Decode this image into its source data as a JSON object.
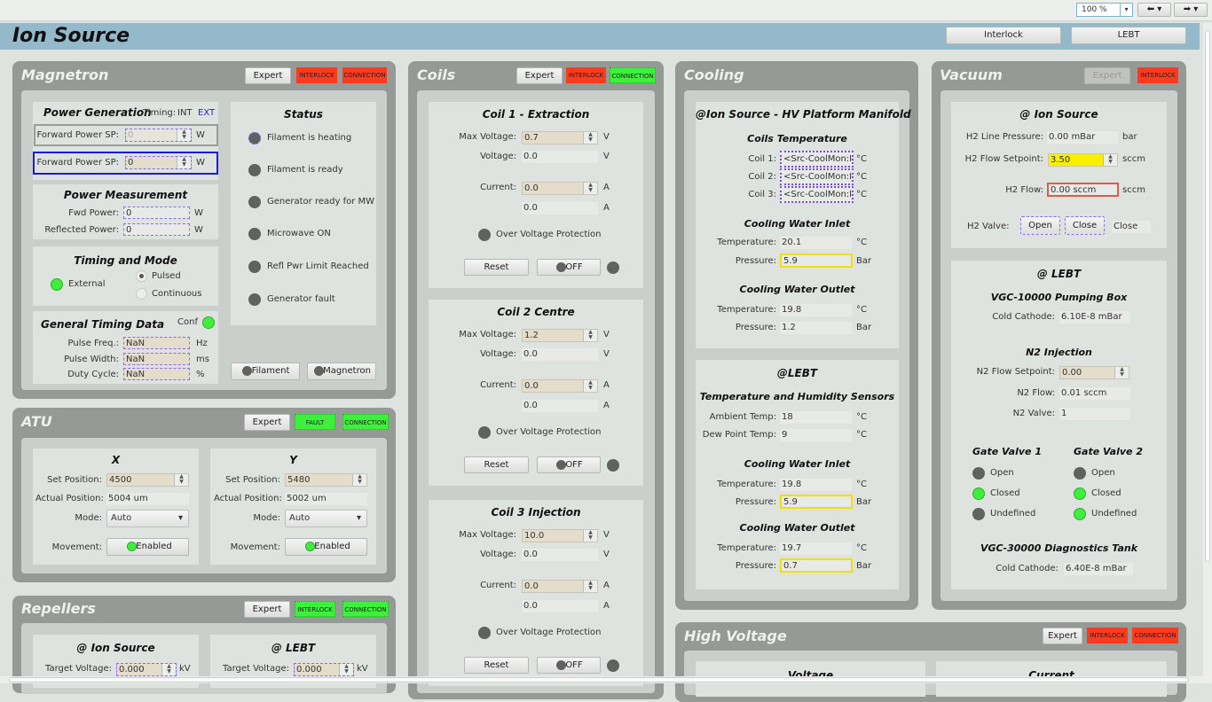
{
  "toolbar": {
    "zoom": "100 %",
    "zoom_arrow": "▾",
    "back_icon": "arrow-left",
    "forward_icon": "arrow-right"
  },
  "header": {
    "title": "Ion Source",
    "interlock_btn": "Interlock",
    "lebt_btn": "LEBT"
  },
  "colors": {
    "alarm": "#ff3a1f",
    "ok": "#3cf03c",
    "header": "#93b9cb",
    "panel": "#969a96"
  },
  "common": {
    "expert": "Expert",
    "interlock": "INTERLOCK",
    "connection": "CONNECTION",
    "fault": "FAULT"
  },
  "magnetron": {
    "title": "Magnetron",
    "interlock_state": "alarm",
    "connection_state": "alarm",
    "power_generation": {
      "title": "Power Generation",
      "timing_label": "Timing:",
      "int": "INT",
      "ext": "EXT",
      "sp_label": "Forward Power SP:",
      "sp1": "0",
      "sp2": "0",
      "unit": "W"
    },
    "power_measurement": {
      "title": "Power Measurement",
      "fwd_label": "Fwd Power:",
      "fwd": "0",
      "refl_label": "Reflected Power:",
      "refl": "0",
      "unit": "W"
    },
    "timing_mode": {
      "title": "Timing and Mode",
      "external": "External",
      "pulsed": "Pulsed",
      "continuous": "Continuous",
      "selected": "Pulsed"
    },
    "general_timing": {
      "title": "General Timing Data",
      "conf": "Conf",
      "pulse_freq_label": "Pulse Freq.:",
      "pulse_freq": "NaN",
      "pulse_freq_unit": "Hz",
      "pulse_width_label": "Pulse Width:",
      "pulse_width": "NaN",
      "pulse_width_unit": "ms",
      "duty_label": "Duty Cycle:",
      "duty": "NaN",
      "duty_unit": "%"
    },
    "status": {
      "title": "Status",
      "items": [
        "Filament is heating",
        "Filament is ready",
        "Generator ready for MW",
        "Microwave ON",
        "Refl Pwr Limit Reached",
        "Generator fault"
      ]
    },
    "filament_btn": "Filament",
    "magnetron_btn": "Magnetron"
  },
  "atu": {
    "title": "ATU",
    "set_label": "Set Position:",
    "actual_label": "Actual Position:",
    "mode_label": "Mode:",
    "movement_label": "Movement:",
    "x": {
      "title": "X",
      "set": "4500",
      "actual": "5004 um",
      "mode": "Auto",
      "movement": "Enabled"
    },
    "y": {
      "title": "Y",
      "set": "5480",
      "actual": "5002 um",
      "mode": "Auto",
      "movement": "Enabled"
    }
  },
  "repellers": {
    "title": "Repellers",
    "ion_source": {
      "title": "@ Ion Source",
      "label": "Target Voltage:",
      "value": "0.000",
      "unit": "kV"
    },
    "lebt": {
      "title": "@ LEBT",
      "label": "Target Voltage:",
      "value": "0.000",
      "unit": "kV"
    }
  },
  "coils": {
    "title": "Coils",
    "max_label": "Max Voltage:",
    "voltage_label": "Voltage:",
    "current_label": "Current:",
    "ovp": "Over Voltage Protection",
    "reset": "Reset",
    "off": "OFF",
    "v": "V",
    "a": "A",
    "items": [
      {
        "title": "Coil 1 - Extraction",
        "max": "0.7",
        "voltage": "0.0",
        "current": "0.0",
        "current_rb": "0.0"
      },
      {
        "title": "Coil 2 Centre",
        "max": "1.2",
        "voltage": "0.0",
        "current": "0.0",
        "current_rb": "0.0"
      },
      {
        "title": "Coil 3 Injection",
        "max": "10.0",
        "voltage": "0.0",
        "current": "0.0",
        "current_rb": "0.0"
      }
    ]
  },
  "cooling": {
    "title": "Cooling",
    "deg": "°C",
    "bar": "Bar",
    "temp_label": "Temperature:",
    "press_label": "Pressure:",
    "hv": {
      "title": "@Ion Source - HV Platform Manifold",
      "coils_title": "Coils Temperature",
      "coil1_label": "Coil 1:",
      "coil2_label": "Coil 2:",
      "coil3_label": "Coil 3:",
      "coil1": "<Src-CoolMon:IS",
      "coil2": "<Src-CoolMon:IS",
      "coil3": "<Src-CoolMon:IS",
      "inlet_title": "Cooling Water Inlet",
      "inlet_temp": "20.1",
      "inlet_press": "5.9",
      "outlet_title": "Cooling Water Outlet",
      "outlet_temp": "19.8",
      "outlet_press": "1.2"
    },
    "lebt": {
      "title": "@LEBT",
      "sensors_title": "Temperature and Humidity Sensors",
      "ambient_label": "Ambient Temp:",
      "ambient": "18",
      "dew_label": "Dew Point Temp:",
      "dew": "9",
      "inlet_title": "Cooling Water Inlet",
      "inlet_temp": "19.8",
      "inlet_press": "5.9",
      "outlet_title": "Cooling Water Outlet",
      "outlet_temp": "19.7",
      "outlet_press": "0.7"
    }
  },
  "vacuum": {
    "title": "Vacuum",
    "ion_source": {
      "title": "@ Ion Source",
      "h2_line_label": "H2 Line Pressure:",
      "h2_line": "0.00 mBar",
      "h2_line_unit": "bar",
      "h2_sp_label": "H2 Flow Setpoint:",
      "h2_sp": "3.50",
      "sccm": "sccm",
      "h2_flow_label": "H2 Flow:",
      "h2_flow": "0.00 sccm",
      "valve_label": "H2 Valve:",
      "open": "Open",
      "close": "Close",
      "valve_state": "Close"
    },
    "lebt": {
      "title": "@ LEBT",
      "vgc1_title": "VGC-10000 Pumping Box",
      "cc_label": "Cold Cathode:",
      "cc1": "6.10E-8 mBar",
      "n2_title": "N2 Injection",
      "n2_sp_label": "N2 Flow Setpoint:",
      "n2_sp": "0.00",
      "n2_flow_label": "N2 Flow:",
      "n2_flow": "0.01 sccm",
      "n2_valve_label": "N2 Valve:",
      "n2_valve": "1",
      "gv1": {
        "title": "Gate Valve 1",
        "open": "Open",
        "closed": "Closed",
        "undefined": "Undefined",
        "state": [
          "off",
          "on",
          "off"
        ]
      },
      "gv2": {
        "title": "Gate Valve 2",
        "open": "Open",
        "closed": "Closed",
        "undefined": "Undefined",
        "state": [
          "off",
          "on",
          "on"
        ]
      },
      "vgc3_title": "VGC-30000 Diagnostics Tank",
      "cc2": "6.40E-8 mBar"
    }
  },
  "high_voltage": {
    "title": "High Voltage",
    "voltage": "Voltage",
    "current": "Current"
  }
}
